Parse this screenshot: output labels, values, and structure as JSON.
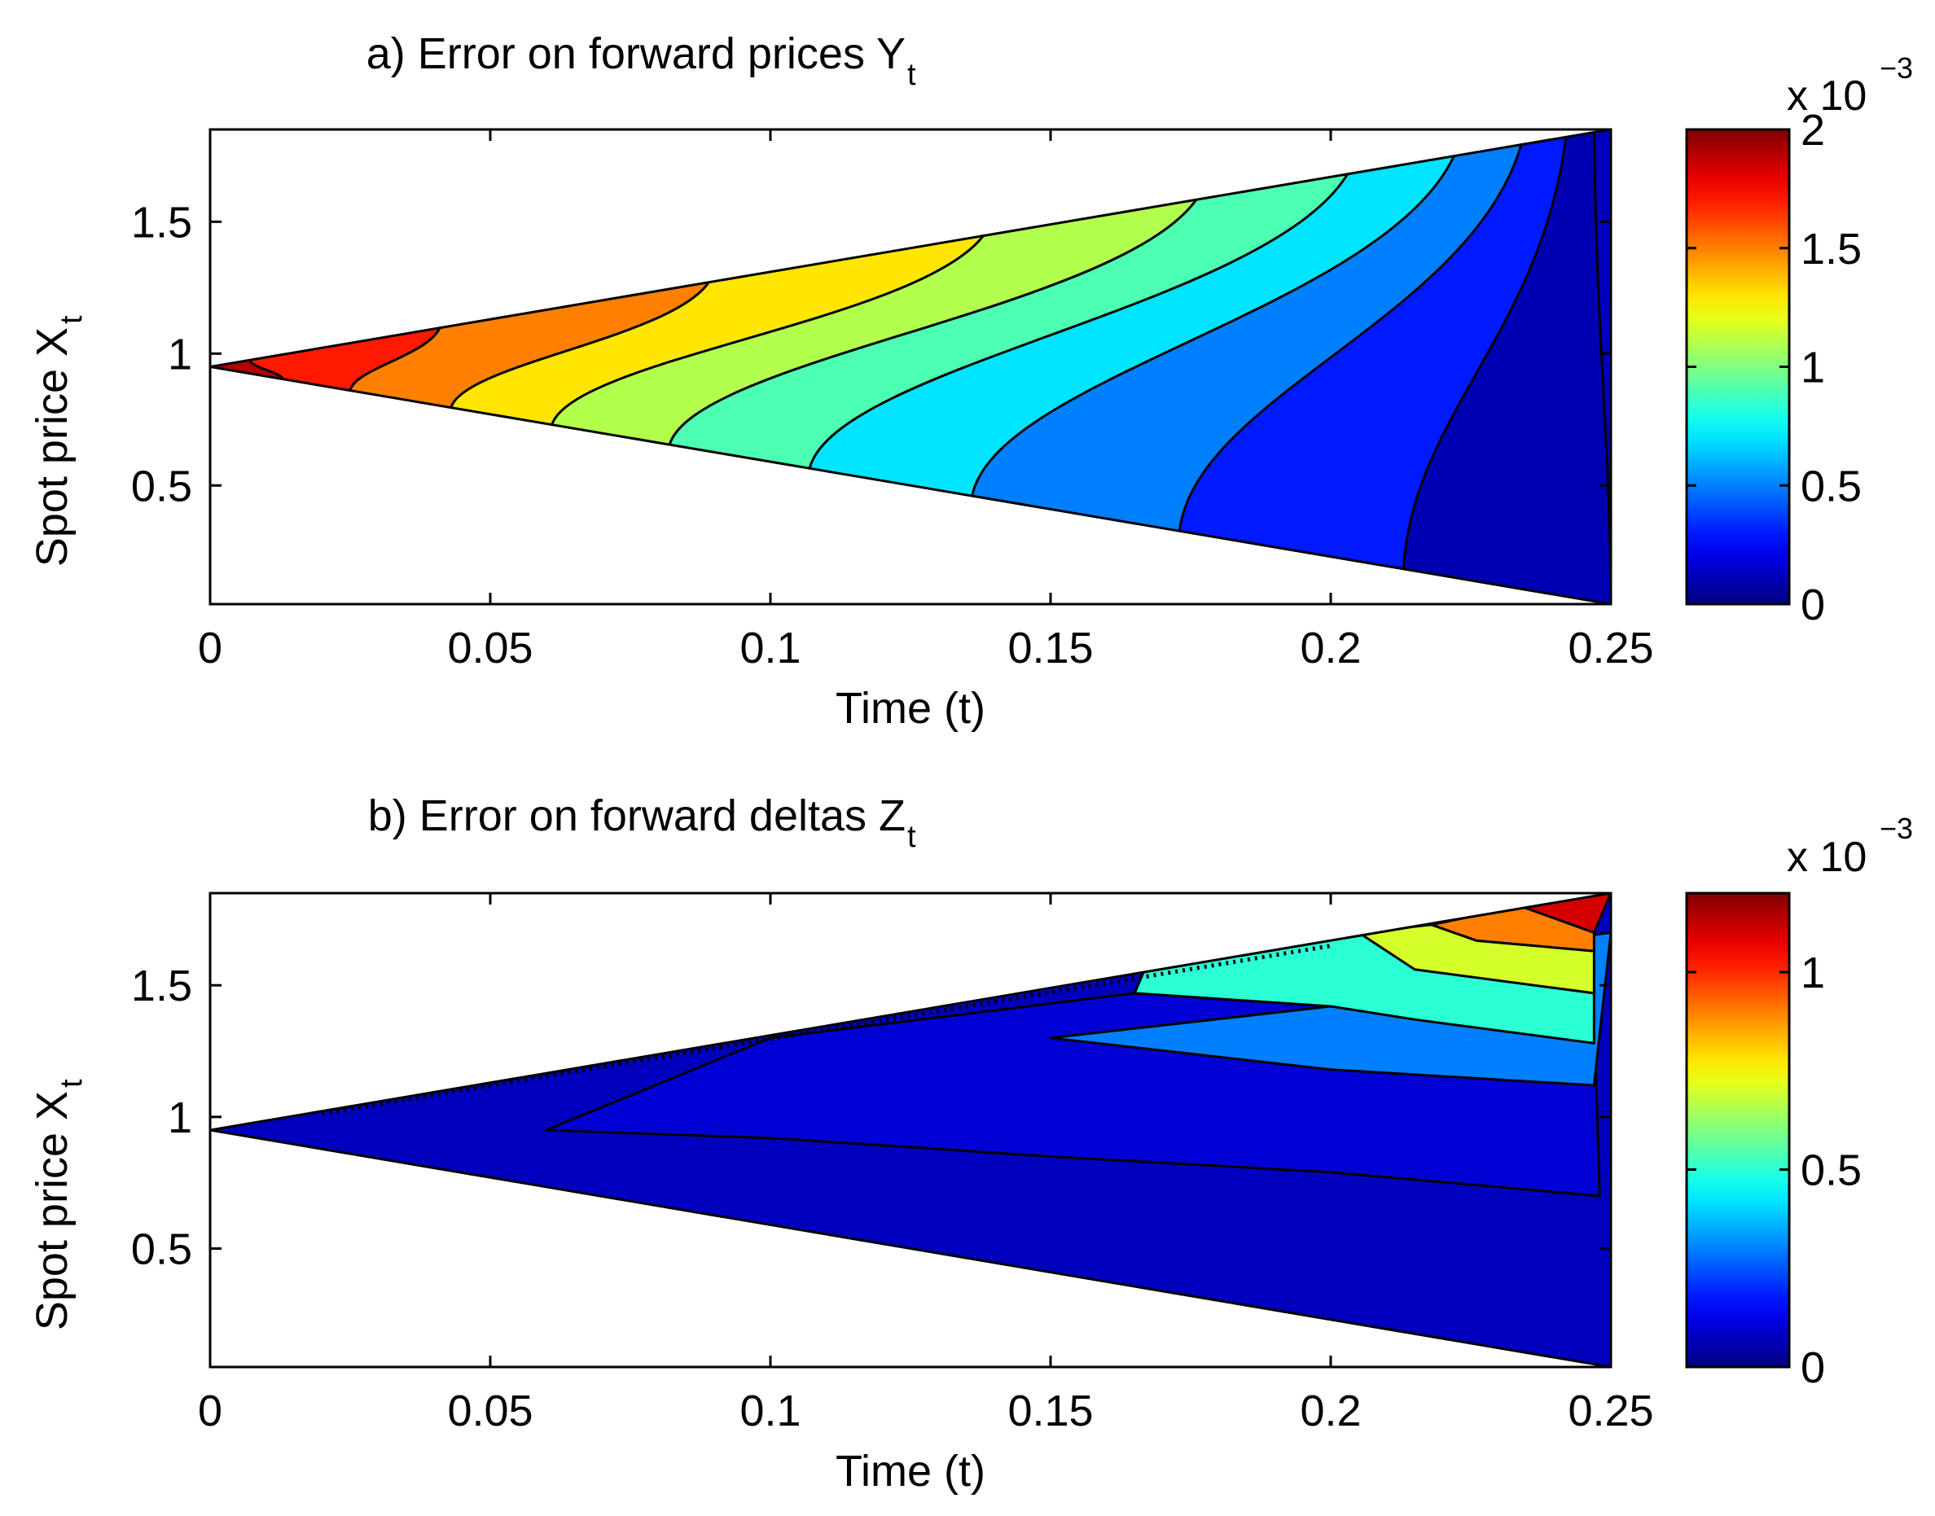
{
  "chart_data": [
    {
      "type": "contourf",
      "title": "a) Error on forward prices Y",
      "title_subscript": "t",
      "xlabel": "Time (t)",
      "ylabel": "Spot price X",
      "ylabel_subscript": "t",
      "xlim": [
        0,
        0.25
      ],
      "ylim": [
        0.05,
        1.85
      ],
      "xticks": [
        "0",
        "0.05",
        "0.1",
        "0.15",
        "0.2",
        "0.25"
      ],
      "yticks": [
        "0.5",
        "1",
        "1.5"
      ],
      "domain": {
        "apex": [
          0,
          0.95
        ],
        "top_end": [
          0.25,
          1.85
        ],
        "bottom_end": [
          0.25,
          0.05
        ]
      },
      "contour_levels": [
        0,
        0.0002,
        0.0004,
        0.0006,
        0.0008,
        0.001,
        0.0012,
        0.0014,
        0.0016,
        0.0018,
        0.002
      ],
      "boundary_hits": [
        {
          "top_t": 0.007,
          "bottom_t": 0.013
        },
        {
          "top_t": 0.041,
          "bottom_t": 0.025
        },
        {
          "top_t": 0.089,
          "bottom_t": 0.043
        },
        {
          "top_t": 0.138,
          "bottom_t": 0.061
        },
        {
          "top_t": 0.176,
          "bottom_t": 0.082
        },
        {
          "top_t": 0.203,
          "bottom_t": 0.107
        },
        {
          "top_t": 0.222,
          "bottom_t": 0.136
        },
        {
          "top_t": 0.234,
          "bottom_t": 0.173
        },
        {
          "top_t": 0.242,
          "bottom_t": 0.213
        },
        {
          "top_t": 0.247,
          "bottom_t": 0.25
        }
      ],
      "colorbar": {
        "ticks": [
          "0",
          "0.5",
          "1",
          "1.5",
          "2"
        ],
        "tick_values": [
          0,
          0.5,
          1,
          1.5,
          2
        ],
        "max": 2.0,
        "multiplier": "x 10",
        "exponent": "−3"
      }
    },
    {
      "type": "contourf",
      "title": "b) Error on forward deltas Z",
      "title_subscript": "t",
      "xlabel": "Time (t)",
      "ylabel": "Spot price X",
      "ylabel_subscript": "t",
      "xlim": [
        0,
        0.25
      ],
      "ylim": [
        0.05,
        1.85
      ],
      "xticks": [
        "0",
        "0.05",
        "0.1",
        "0.15",
        "0.2",
        "0.25"
      ],
      "yticks": [
        "0.5",
        "1",
        "1.5"
      ],
      "domain": {
        "apex": [
          0,
          0.95
        ],
        "top_end": [
          0.25,
          1.85
        ],
        "bottom_end": [
          0.25,
          0.05
        ]
      },
      "regions_by_level": [
        {
          "level": 0,
          "points": [
            [
              0,
              0.95
            ],
            [
              0.118,
              1.26
            ],
            [
              0.15,
              1.17
            ],
            [
              0.2,
              1.0
            ],
            [
              0.235,
              0.92
            ],
            [
              0.247,
              0.92
            ],
            [
              0.248,
              0.05
            ]
          ]
        },
        {
          "level": 1,
          "points": [
            [
              0.1,
              1.3
            ],
            [
              0.165,
              1.47
            ],
            [
              0.2,
              1.42
            ],
            [
              0.247,
              1.38
            ],
            [
              0.248,
              0.7
            ],
            [
              0.2,
              0.79
            ],
            [
              0.15,
              0.85
            ],
            [
              0.1,
              0.92
            ],
            [
              0.06,
              0.95
            ]
          ]
        },
        {
          "level": 2,
          "points": [
            [
              0.165,
              1.47
            ],
            [
              0.25,
              1.7
            ],
            [
              0.247,
              1.12
            ],
            [
              0.2,
              1.18
            ],
            [
              0.15,
              1.3
            ],
            [
              0.2,
              1.42
            ],
            [
              0.247,
              1.38
            ]
          ]
        },
        {
          "level": 3,
          "points": [
            [
              0.168,
              1.62
            ],
            [
              0.205,
              1.7
            ],
            [
              0.218,
              1.57
            ],
            [
              0.247,
              1.5
            ],
            [
              0.247,
              1.28
            ],
            [
              0.215,
              1.37
            ],
            [
              0.2,
              1.42
            ],
            [
              0.165,
              1.47
            ]
          ]
        },
        {
          "level": 4,
          "points": [
            [
              0.205,
              1.7
            ],
            [
              0.218,
              1.73
            ],
            [
              0.226,
              1.67
            ],
            [
              0.247,
              1.63
            ],
            [
              0.247,
              1.47
            ],
            [
              0.215,
              1.56
            ]
          ]
        },
        {
          "level": 5,
          "points": [
            [
              0.218,
              1.73
            ],
            [
              0.234,
              1.8
            ],
            [
              0.247,
              1.7
            ],
            [
              0.247,
              1.63
            ],
            [
              0.226,
              1.67
            ]
          ]
        },
        {
          "level": 6,
          "points": [
            [
              0.234,
              1.8
            ],
            [
              0.25,
              1.85
            ],
            [
              0.247,
              1.7
            ]
          ]
        }
      ],
      "colorbar": {
        "ticks": [
          "0",
          "0.5",
          "1"
        ],
        "tick_values": [
          0,
          0.5,
          1
        ],
        "max": 1.2,
        "multiplier": "x 10",
        "exponent": "−3"
      }
    }
  ]
}
